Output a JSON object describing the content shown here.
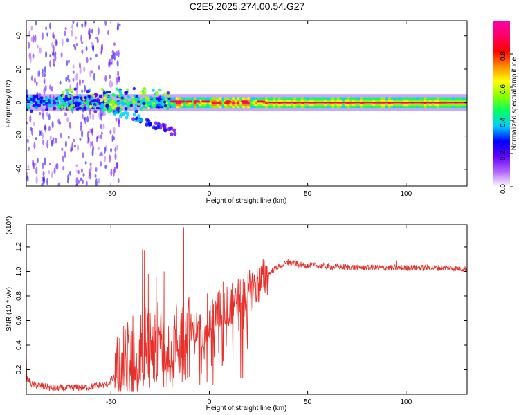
{
  "page": {
    "title": "C2E5.2025.274.00.54.G27"
  },
  "chart_data": [
    {
      "type": "heatmap",
      "title": "C2E5.2025.274.00.54.G27",
      "xlabel": "Height of straight line (km)",
      "ylabel": "Frequency (Hz)",
      "xlim": [
        -93,
        131
      ],
      "ylim": [
        -50,
        49
      ],
      "xticks": [
        "-50",
        "0",
        "50",
        "100"
      ],
      "yticks": [
        "40",
        "20",
        "0",
        "-20",
        "-40"
      ],
      "colorbar": {
        "label": "Normalized spectral amplitude",
        "ticks": [
          "0.0",
          "0.2",
          "0.4",
          "0.6",
          "0.8"
        ],
        "range": [
          0,
          1
        ],
        "colormap": [
          "#ffffff",
          "#b066ff",
          "#6600ff",
          "#0000ff",
          "#00ccff",
          "#00ff66",
          "#88ff00",
          "#ffff00",
          "#ff8800",
          "#ff0000",
          "#ff0066",
          "#ff00aa"
        ]
      },
      "main_band": {
        "center_hz": 0,
        "half_width_hz": 3,
        "from_km": -93,
        "to_km": 131
      },
      "branch": {
        "from_km": -55,
        "to_km": -17,
        "start_hz": -2,
        "end_hz": -18
      },
      "noise_region_km": [
        -93,
        -55
      ]
    },
    {
      "type": "line",
      "xlabel": "Height of straight line (km)",
      "ylabel": "SNR (10 * v/v)",
      "y_multiplier": "(x10",
      "y_multiplier_exp": "4",
      "y_multiplier_close": ")",
      "xlim": [
        -93,
        131
      ],
      "ylim": [
        0,
        1.38
      ],
      "xticks": [
        "-50",
        "0",
        "50",
        "100"
      ],
      "yticks": [
        "0.2",
        "0.4",
        "0.6",
        "0.8",
        "1.0",
        "1.2"
      ],
      "color": "#e8302b",
      "envelope": [
        [
          -93,
          0.14
        ],
        [
          -90,
          0.08
        ],
        [
          -80,
          0.05
        ],
        [
          -70,
          0.05
        ],
        [
          -60,
          0.06
        ],
        [
          -52,
          0.08
        ],
        [
          -48,
          0.14
        ],
        [
          -45,
          0.2
        ],
        [
          -40,
          0.3
        ],
        [
          -35,
          0.38
        ],
        [
          -30,
          0.42
        ],
        [
          -25,
          0.42
        ],
        [
          -20,
          0.4
        ],
        [
          -15,
          0.46
        ],
        [
          -10,
          0.48
        ],
        [
          -5,
          0.52
        ],
        [
          0,
          0.6
        ],
        [
          5,
          0.68
        ],
        [
          10,
          0.72
        ],
        [
          15,
          0.78
        ],
        [
          20,
          0.84
        ],
        [
          25,
          0.9
        ],
        [
          30,
          0.98
        ],
        [
          35,
          1.04
        ],
        [
          40,
          1.07
        ],
        [
          50,
          1.05
        ],
        [
          60,
          1.04
        ],
        [
          80,
          1.03
        ],
        [
          100,
          1.03
        ],
        [
          120,
          1.03
        ],
        [
          131,
          1.02
        ]
      ],
      "spikes": [
        [
          -93,
          0.31
        ],
        [
          -34,
          1.18
        ],
        [
          -33,
          1.17
        ],
        [
          -31,
          0.98
        ],
        [
          -27,
          0.96
        ],
        [
          -23,
          1.0
        ],
        [
          -13,
          1.36
        ],
        [
          -1,
          0.82
        ],
        [
          7,
          0.92
        ],
        [
          10,
          0.62
        ],
        [
          12,
          0.28
        ],
        [
          7,
          0.27
        ],
        [
          2,
          0.38
        ],
        [
          -12,
          0.12
        ],
        [
          -33,
          0.12
        ],
        [
          -48,
          0.05
        ],
        [
          40,
          1.1
        ],
        [
          95,
          1.09
        ]
      ]
    }
  ]
}
